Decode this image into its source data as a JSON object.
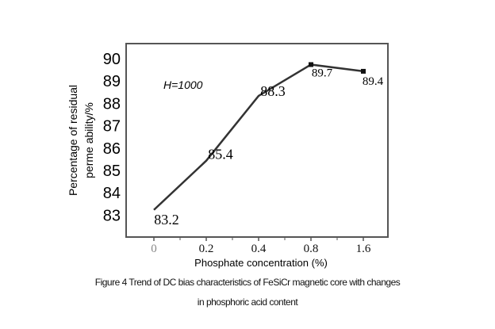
{
  "chart_data": {
    "type": "line",
    "categories": [
      "0",
      "0.2",
      "0.4",
      "0.8",
      "1.6"
    ],
    "values": [
      83.2,
      85.4,
      88.3,
      89.7,
      89.4
    ],
    "data_labels": [
      "83.2",
      "85.4",
      "88.3",
      "89.7",
      "89.4"
    ],
    "xlabel": "Phosphate concentration (%)",
    "ylabel_lines": [
      "Percentage  of  residual",
      "perme ability/%"
    ],
    "yticks": [
      83,
      84,
      85,
      86,
      87,
      88,
      89,
      90
    ],
    "ylim": [
      82,
      90.2
    ],
    "annotation": "H=1000",
    "grid": false,
    "line_color": "#333333"
  },
  "caption": {
    "line1": "Figure 4 Trend of DC bias characteristics of FeSiCr magnetic core with changes",
    "line2": "in phosphoric acid content"
  }
}
